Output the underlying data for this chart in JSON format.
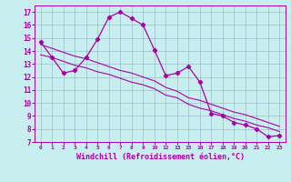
{
  "xlabel": "Windchill (Refroidissement éolien,°C)",
  "bg_color": "#c8eef0",
  "line_color": "#aa00aa",
  "grid_color": "#9bbfcc",
  "x_labels": [
    "0",
    "1",
    "2",
    "3",
    "4",
    "5",
    "6",
    "7",
    "8",
    "9",
    "10",
    "12",
    "13",
    "15",
    "16",
    "17",
    "18",
    "19",
    "20",
    "21",
    "22",
    "23"
  ],
  "ylim": [
    7,
    17.5
  ],
  "yticks": [
    7,
    8,
    9,
    10,
    11,
    12,
    13,
    14,
    15,
    16,
    17
  ],
  "line1_y": [
    14.7,
    13.5,
    12.3,
    12.5,
    13.5,
    14.9,
    16.6,
    17.0,
    16.5,
    16.0,
    14.1,
    12.1,
    12.3,
    12.8,
    11.6,
    9.2,
    9.0,
    8.5,
    8.3,
    8.0,
    7.4,
    7.5
  ],
  "line2_y": [
    13.7,
    13.5,
    13.2,
    12.9,
    12.7,
    12.4,
    12.2,
    11.9,
    11.6,
    11.4,
    11.1,
    10.6,
    10.4,
    9.9,
    9.6,
    9.4,
    9.1,
    8.8,
    8.6,
    8.3,
    8.1,
    7.8
  ],
  "line3_y": [
    14.5,
    14.2,
    13.9,
    13.6,
    13.4,
    13.1,
    12.8,
    12.5,
    12.3,
    12.0,
    11.7,
    11.2,
    10.9,
    10.4,
    10.2,
    9.9,
    9.6,
    9.3,
    9.1,
    8.8,
    8.5,
    8.2
  ]
}
